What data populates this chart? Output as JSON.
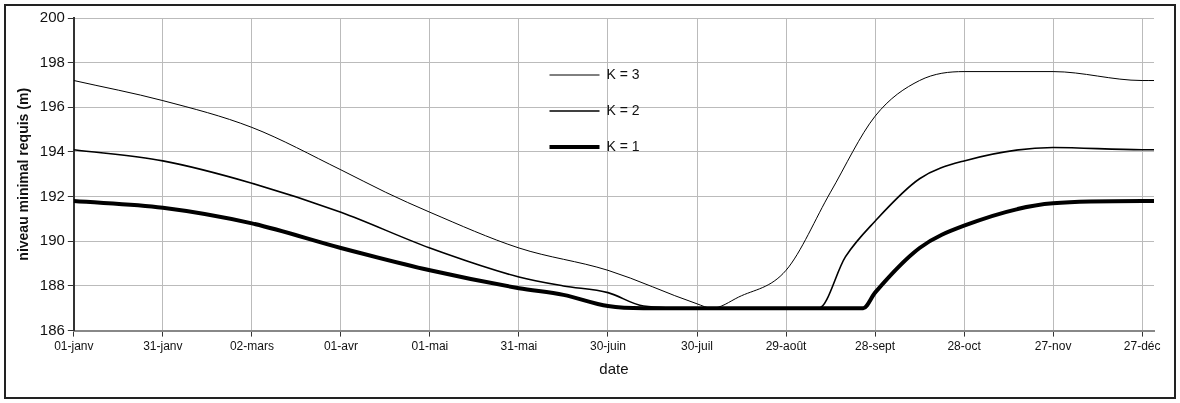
{
  "chart_data": {
    "type": "line",
    "xlabel": "date",
    "ylabel": "niveau minimal requis (m)",
    "xlim": [
      "--01-01",
      "--12-31"
    ],
    "ylim": [
      186,
      200
    ],
    "yticks": [
      186,
      188,
      190,
      192,
      194,
      196,
      198,
      200
    ],
    "xticks": [
      {
        "value": "--01-01",
        "label": "01-janv"
      },
      {
        "value": "--01-31",
        "label": "31-janv"
      },
      {
        "value": "--03-02",
        "label": "02-mars"
      },
      {
        "value": "--04-01",
        "label": "01-avr"
      },
      {
        "value": "--05-01",
        "label": "01-mai"
      },
      {
        "value": "--05-31",
        "label": "31-mai"
      },
      {
        "value": "--06-30",
        "label": "30-juin"
      },
      {
        "value": "--07-30",
        "label": "30-juil"
      },
      {
        "value": "--08-29",
        "label": "29-août"
      },
      {
        "value": "--09-28",
        "label": "28-sept"
      },
      {
        "value": "--10-28",
        "label": "28-oct"
      },
      {
        "value": "--11-27",
        "label": "27-nov"
      },
      {
        "value": "--12-27",
        "label": "27-déc"
      }
    ],
    "grid": true,
    "legend": "top",
    "marker": "none",
    "line_style": "solid",
    "series": [
      {
        "name": "K = 3",
        "color": "#000000",
        "x": [
          "--01-01",
          "--01-31",
          "--03-02",
          "--04-01",
          "--04-16",
          "--05-01",
          "--05-31",
          "--06-30",
          "--07-30",
          "--08-04",
          "--08-13",
          "--08-29",
          "--09-13",
          "--09-28",
          "--10-13",
          "--10-28",
          "--11-27",
          "--12-27",
          "--12-31"
        ],
        "values": [
          197.2,
          196.3,
          195.1,
          193.2,
          192.2,
          191.3,
          189.7,
          188.7,
          187.2,
          187.0,
          187.5,
          188.7,
          192.2,
          195.6,
          197.2,
          197.6,
          197.6,
          197.2,
          197.2
        ]
      },
      {
        "name": "K = 2",
        "color": "#000000",
        "x": [
          "--01-01",
          "--01-31",
          "--03-02",
          "--04-01",
          "--05-01",
          "--05-31",
          "--06-15",
          "--06-30",
          "--07-12",
          "--07-30",
          "--09-09",
          "--09-18",
          "--09-28",
          "--10-13",
          "--10-28",
          "--11-27",
          "--12-27",
          "--12-31"
        ],
        "values": [
          194.1,
          193.6,
          192.6,
          191.3,
          189.7,
          188.4,
          188.0,
          187.7,
          187.1,
          187.0,
          187.0,
          189.3,
          190.9,
          192.8,
          193.6,
          194.2,
          194.1,
          194.1
        ]
      },
      {
        "name": "K = 1",
        "color": "#000000",
        "x": [
          "--01-01",
          "--01-31",
          "--03-02",
          "--04-01",
          "--05-01",
          "--05-31",
          "--06-15",
          "--06-30",
          "--07-12",
          "--09-24",
          "--09-28",
          "--10-13",
          "--10-28",
          "--11-27",
          "--12-27",
          "--12-31"
        ],
        "values": [
          191.8,
          191.5,
          190.8,
          189.7,
          188.7,
          187.9,
          187.6,
          187.1,
          187.0,
          187.0,
          187.7,
          189.7,
          190.7,
          191.7,
          191.8,
          191.8
        ]
      }
    ]
  }
}
